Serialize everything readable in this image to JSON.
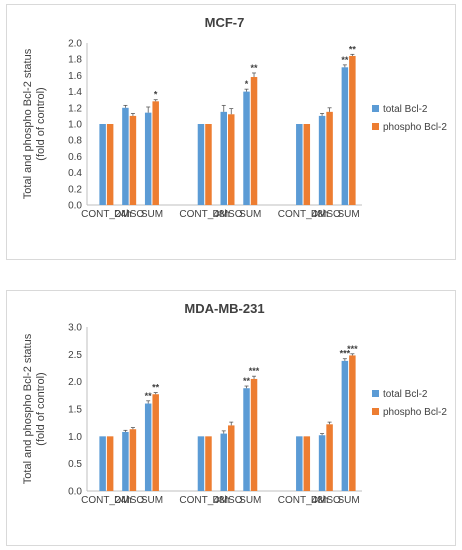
{
  "colors": {
    "total": "#5b9bd5",
    "phospho": "#ed7d31",
    "axis": "#bfbfbf",
    "text": "#404040",
    "error": "#595959"
  },
  "chart_data": [
    {
      "type": "bar",
      "title": "MCF-7",
      "ylabel_line1": "Total and phospho Bcl-2 status",
      "ylabel_line2": "(fold of control)",
      "ylim": [
        0,
        2.0
      ],
      "yticks": [
        "0.0",
        "0.2",
        "0.4",
        "0.6",
        "0.8",
        "1.0",
        "1.2",
        "1.4",
        "1.6",
        "1.8",
        "2.0"
      ],
      "categories": [
        "CONT_24h",
        "DMSO",
        "SUM",
        "CONT_48h",
        "DMSO",
        "SUM",
        "CONT_48h",
        "DMSO",
        "SUM"
      ],
      "series": [
        {
          "name": "total Bcl-2",
          "values": [
            1.0,
            1.2,
            1.14,
            1.0,
            1.15,
            1.4,
            1.0,
            1.1,
            1.7
          ],
          "errors": [
            0.0,
            0.03,
            0.07,
            0.0,
            0.08,
            0.03,
            0.0,
            0.03,
            0.03
          ],
          "sig": [
            "",
            "",
            "",
            "",
            "",
            "*",
            "",
            "",
            "**"
          ]
        },
        {
          "name": "phospho Bcl-2",
          "values": [
            1.0,
            1.1,
            1.28,
            1.0,
            1.12,
            1.58,
            1.0,
            1.15,
            1.84
          ],
          "errors": [
            0.0,
            0.03,
            0.02,
            0.0,
            0.07,
            0.05,
            0.0,
            0.05,
            0.02
          ],
          "sig": [
            "",
            "",
            "*",
            "",
            "",
            "**",
            "",
            "",
            "**"
          ]
        }
      ],
      "legend": "right"
    },
    {
      "type": "bar",
      "title": "MDA-MB-231",
      "ylabel_line1": "Total and phospho Bcl-2 status",
      "ylabel_line2": "(fold of control)",
      "ylim": [
        0,
        3.0
      ],
      "yticks": [
        "0.0",
        "0.5",
        "1.0",
        "1.5",
        "2.0",
        "2.5",
        "3.0"
      ],
      "categories": [
        "CONT_24h",
        "DMSO",
        "SUM",
        "CONT_48h",
        "DMSO",
        "SUM",
        "CONT_48h",
        "DMSO",
        "SUM"
      ],
      "series": [
        {
          "name": "total Bcl-2",
          "values": [
            1.0,
            1.08,
            1.6,
            1.0,
            1.05,
            1.88,
            1.0,
            1.02,
            2.38
          ],
          "errors": [
            0.0,
            0.03,
            0.05,
            0.0,
            0.05,
            0.04,
            0.0,
            0.03,
            0.04
          ],
          "sig": [
            "",
            "",
            "**",
            "",
            "",
            "**",
            "",
            "",
            "***"
          ]
        },
        {
          "name": "phospho Bcl-2",
          "values": [
            1.0,
            1.13,
            1.77,
            1.0,
            1.2,
            2.05,
            1.0,
            1.22,
            2.48
          ],
          "errors": [
            0.0,
            0.03,
            0.03,
            0.0,
            0.06,
            0.05,
            0.0,
            0.04,
            0.03
          ],
          "sig": [
            "",
            "",
            "**",
            "",
            "",
            "***",
            "",
            "",
            "***"
          ]
        }
      ],
      "legend": "right"
    }
  ]
}
